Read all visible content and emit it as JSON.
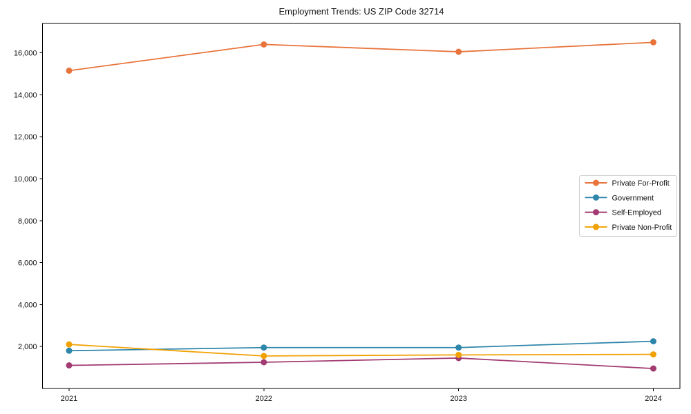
{
  "chart_data": {
    "type": "line",
    "title": "Employment Trends: US ZIP Code 32714",
    "xlabel": "",
    "ylabel": "",
    "x_categories": [
      "2021",
      "2022",
      "2023",
      "2024"
    ],
    "series": [
      {
        "name": "Private For-Profit",
        "color": "#e8743b",
        "values": [
          15150,
          16400,
          16050,
          16500
        ]
      },
      {
        "name": "Government",
        "color": "#2e86ab",
        "values": [
          1800,
          1950,
          1950,
          2250
        ]
      },
      {
        "name": "Self-Employed",
        "color": "#a23b72",
        "values": [
          1100,
          1250,
          1450,
          950
        ]
      },
      {
        "name": "Private Non-Profit",
        "color": "#f2a104",
        "values": [
          2100,
          1550,
          1600,
          1625
        ]
      }
    ],
    "y_ticks": [
      2000,
      4000,
      6000,
      8000,
      10000,
      12000,
      14000,
      16000
    ],
    "y_tick_labels": [
      "2,000",
      "4,000",
      "6,000",
      "8,000",
      "10,000",
      "12,000",
      "14,000",
      "16,000"
    ],
    "ylim": [
      0,
      17400
    ],
    "grid": false,
    "legend_position": "center right",
    "axis_color": "#000000",
    "legend_border_color": "#cccccc",
    "background": "#ffffff"
  }
}
